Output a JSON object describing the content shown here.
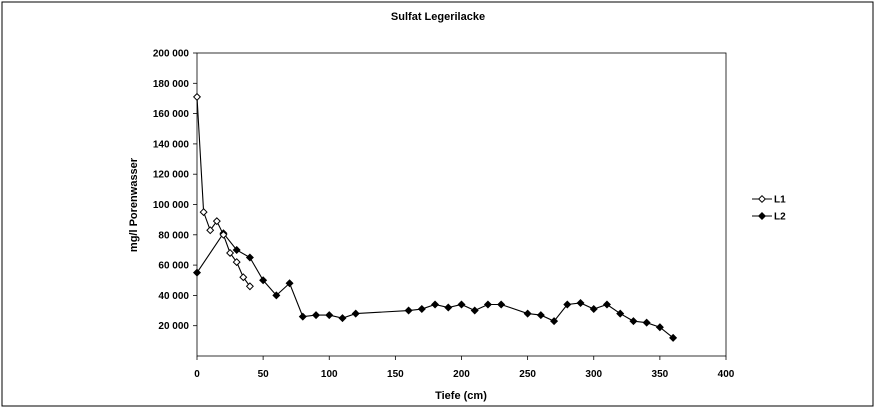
{
  "chart_data": {
    "type": "line",
    "title": "Sulfat Legerilacke",
    "xlabel": "Tiefe (cm)",
    "ylabel": "mg/l Porenwasser",
    "xlim": [
      0,
      400
    ],
    "ylim": [
      0,
      200000
    ],
    "x_ticks": [
      "0",
      "50",
      "100",
      "150",
      "200",
      "250",
      "300",
      "350",
      "400"
    ],
    "y_ticks": [
      "20 000",
      "40 000",
      "60 000",
      "80 000",
      "100 000",
      "120 000",
      "140 000",
      "160 000",
      "180 000",
      "200 000"
    ],
    "grid": false,
    "legend_position": "right",
    "series": [
      {
        "name": "L1",
        "marker": "open-diamond",
        "x": [
          0,
          5,
          10,
          15,
          20,
          25,
          30,
          35,
          40
        ],
        "y": [
          171000,
          95000,
          83000,
          89000,
          80000,
          68000,
          62000,
          52000,
          46000
        ]
      },
      {
        "name": "L2",
        "marker": "filled-diamond",
        "x": [
          0,
          20,
          30,
          40,
          50,
          60,
          70,
          80,
          90,
          100,
          110,
          120,
          160,
          170,
          180,
          190,
          200,
          210,
          220,
          230,
          250,
          260,
          270,
          280,
          290,
          300,
          310,
          320,
          330,
          340,
          350,
          360
        ],
        "y": [
          55000,
          81000,
          70000,
          65000,
          50000,
          40000,
          48000,
          26000,
          27000,
          27000,
          25000,
          28000,
          30000,
          31000,
          34000,
          32000,
          34000,
          30000,
          34000,
          34000,
          28000,
          27000,
          23000,
          34000,
          35000,
          31000,
          34000,
          28000,
          23000,
          22000,
          19000,
          12000
        ]
      }
    ]
  }
}
